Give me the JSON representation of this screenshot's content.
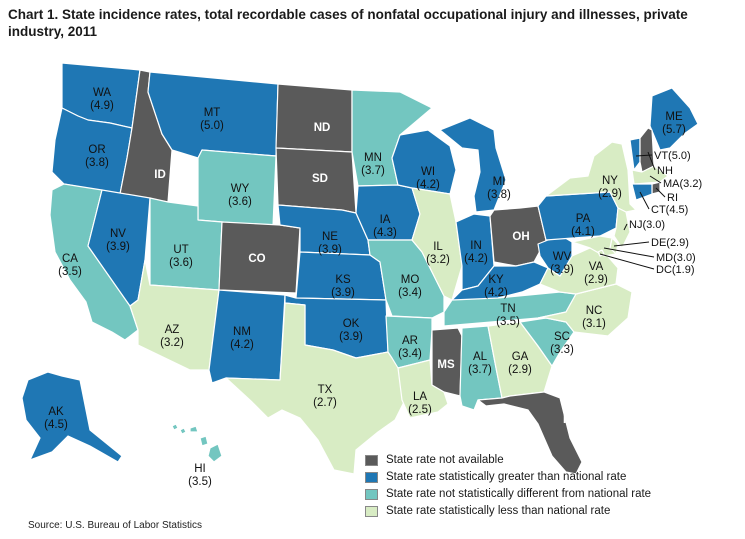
{
  "title": "Chart 1. State incidence rates, total recordable cases of nonfatal occupational injury and illnesses, private industry, 2011",
  "source": "Source: U.S. Bureau of Labor Statistics",
  "colors": {
    "not_available": "#5a5a5a",
    "greater": "#1f77b4",
    "not_different": "#73c6c0",
    "less": "#d8ecc4"
  },
  "legend": [
    {
      "key": "not_available",
      "label": "State rate not available"
    },
    {
      "key": "greater",
      "label": "State rate statistically greater than national rate"
    },
    {
      "key": "not_different",
      "label": "State rate not statistically different from national rate"
    },
    {
      "key": "less",
      "label": "State rate statistically less than national rate"
    }
  ],
  "states": [
    {
      "abbr": "WA",
      "rate": "(4.9)",
      "cat": "greater"
    },
    {
      "abbr": "OR",
      "rate": "(3.8)",
      "cat": "greater"
    },
    {
      "abbr": "CA",
      "rate": "(3.5)",
      "cat": "not_different"
    },
    {
      "abbr": "ID",
      "rate": "",
      "cat": "not_available"
    },
    {
      "abbr": "NV",
      "rate": "(3.9)",
      "cat": "greater"
    },
    {
      "abbr": "MT",
      "rate": "(5.0)",
      "cat": "greater"
    },
    {
      "abbr": "WY",
      "rate": "(3.6)",
      "cat": "not_different"
    },
    {
      "abbr": "UT",
      "rate": "(3.6)",
      "cat": "not_different"
    },
    {
      "abbr": "AZ",
      "rate": "(3.2)",
      "cat": "less"
    },
    {
      "abbr": "CO",
      "rate": "",
      "cat": "not_available"
    },
    {
      "abbr": "NM",
      "rate": "(4.2)",
      "cat": "greater"
    },
    {
      "abbr": "ND",
      "rate": "",
      "cat": "not_available"
    },
    {
      "abbr": "SD",
      "rate": "",
      "cat": "not_available"
    },
    {
      "abbr": "NE",
      "rate": "(3.9)",
      "cat": "greater"
    },
    {
      "abbr": "KS",
      "rate": "(3.9)",
      "cat": "greater"
    },
    {
      "abbr": "OK",
      "rate": "(3.9)",
      "cat": "greater"
    },
    {
      "abbr": "TX",
      "rate": "(2.7)",
      "cat": "less"
    },
    {
      "abbr": "MN",
      "rate": "(3.7)",
      "cat": "not_different"
    },
    {
      "abbr": "IA",
      "rate": "(4.3)",
      "cat": "greater"
    },
    {
      "abbr": "MO",
      "rate": "(3.4)",
      "cat": "not_different"
    },
    {
      "abbr": "AR",
      "rate": "(3.4)",
      "cat": "not_different"
    },
    {
      "abbr": "LA",
      "rate": "(2.5)",
      "cat": "less"
    },
    {
      "abbr": "WI",
      "rate": "(4.2)",
      "cat": "greater"
    },
    {
      "abbr": "IL",
      "rate": "(3.2)",
      "cat": "less"
    },
    {
      "abbr": "MI",
      "rate": "(3.8)",
      "cat": "greater"
    },
    {
      "abbr": "IN",
      "rate": "(4.2)",
      "cat": "greater"
    },
    {
      "abbr": "OH",
      "rate": "",
      "cat": "not_available"
    },
    {
      "abbr": "KY",
      "rate": "(4.2)",
      "cat": "greater"
    },
    {
      "abbr": "TN",
      "rate": "(3.5)",
      "cat": "not_different"
    },
    {
      "abbr": "MS",
      "rate": "",
      "cat": "not_available"
    },
    {
      "abbr": "AL",
      "rate": "(3.7)",
      "cat": "not_different"
    },
    {
      "abbr": "GA",
      "rate": "(2.9)",
      "cat": "less"
    },
    {
      "abbr": "FL",
      "rate": "",
      "cat": "not_available"
    },
    {
      "abbr": "SC",
      "rate": "(3.3)",
      "cat": "not_different"
    },
    {
      "abbr": "NC",
      "rate": "(3.1)",
      "cat": "less"
    },
    {
      "abbr": "VA",
      "rate": "(2.9)",
      "cat": "less"
    },
    {
      "abbr": "WV",
      "rate": "(3.9)",
      "cat": "greater"
    },
    {
      "abbr": "PA",
      "rate": "(4.1)",
      "cat": "greater"
    },
    {
      "abbr": "NY",
      "rate": "(2.9)",
      "cat": "less"
    },
    {
      "abbr": "ME",
      "rate": "(5.7)",
      "cat": "greater"
    },
    {
      "abbr": "AK",
      "rate": "(4.5)",
      "cat": "greater"
    },
    {
      "abbr": "HI",
      "rate": "(3.5)",
      "cat": "not_different"
    }
  ],
  "small_states": [
    {
      "abbr": "VT",
      "text": "VT(5.0)",
      "cat": "greater"
    },
    {
      "abbr": "NH",
      "text": "NH",
      "cat": "not_available"
    },
    {
      "abbr": "MA",
      "text": "MA(3.2)",
      "cat": "less"
    },
    {
      "abbr": "RI",
      "text": "RI",
      "cat": "not_available"
    },
    {
      "abbr": "CT",
      "text": "CT(4.5)",
      "cat": "greater"
    },
    {
      "abbr": "NJ",
      "text": "NJ(3.0)",
      "cat": "less"
    },
    {
      "abbr": "DE",
      "text": "DE(2.9)",
      "cat": "less"
    },
    {
      "abbr": "MD",
      "text": "MD(3.0)",
      "cat": "less"
    },
    {
      "abbr": "DC",
      "text": "DC(1.9)",
      "cat": "less"
    }
  ]
}
